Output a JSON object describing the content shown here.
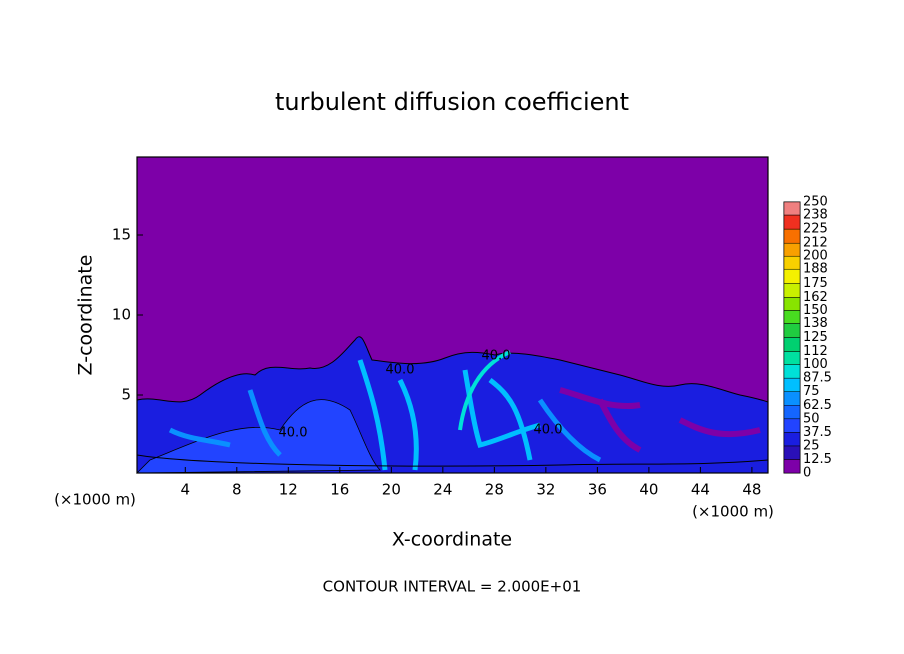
{
  "chart_data": {
    "type": "contour",
    "title": "turbulent diffusion coefficient",
    "x_label": "X-coordinate",
    "y_label": "Z-coordinate",
    "x_unit": "(×1000 m)",
    "x_unit_right": "(×1000 m)",
    "footnote": "CONTOUR INTERVAL = 2.000E+01",
    "xlim": [
      0.25,
      49.25
    ],
    "xticks": [
      4,
      8,
      12,
      16,
      20,
      24,
      28,
      32,
      36,
      40,
      44,
      48
    ],
    "ylim": [
      0.125,
      19.875
    ],
    "yticks": [
      5,
      10,
      15
    ],
    "contour_labels": [
      "40.0",
      "40.0",
      "40.0",
      "40.0"
    ],
    "colorbar": {
      "levels": [
        0,
        12.5,
        25,
        37.5,
        50,
        62.5,
        75,
        87.5,
        100,
        112,
        125,
        138,
        150,
        162,
        175,
        188,
        200,
        212,
        225,
        238,
        250
      ],
      "colors": [
        "#7d00a8",
        "#2a10b8",
        "#1a1ee0",
        "#2244ff",
        "#1466ff",
        "#0a90ff",
        "#00bfff",
        "#00e0d8",
        "#00e0a0",
        "#00d070",
        "#20cc40",
        "#48dc20",
        "#88e400",
        "#c8f000",
        "#f4f000",
        "#f8d000",
        "#f8a000",
        "#f87000",
        "#f03020",
        "#f08080"
      ]
    }
  }
}
